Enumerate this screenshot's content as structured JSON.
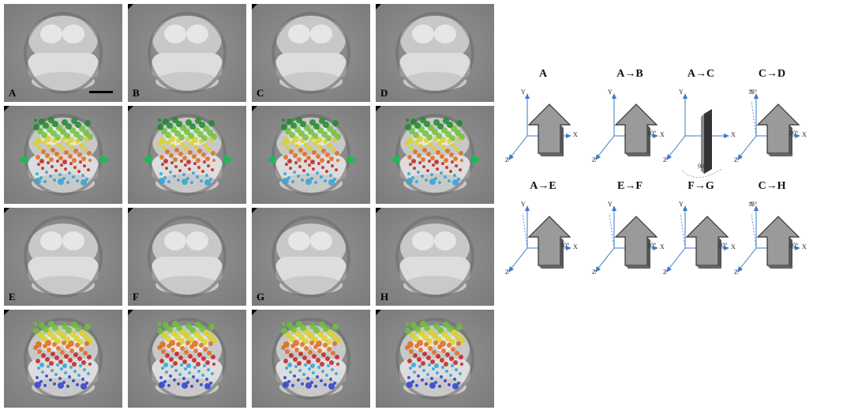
{
  "panels": {
    "row_labels": [
      "A",
      "B",
      "C",
      "D",
      "E",
      "F",
      "G",
      "H"
    ]
  },
  "diagrams": [
    {
      "title": "A",
      "angle": ""
    },
    {
      "title": "A→B",
      "angle": "10°"
    },
    {
      "title": "A→C",
      "angle": "90°"
    },
    {
      "title": "C→D",
      "angle": "20°"
    },
    {
      "title": "A→E",
      "angle": "10°"
    },
    {
      "title": "E→F",
      "angle": "10°"
    },
    {
      "title": "F→G",
      "angle": "10°"
    },
    {
      "title": "C→H",
      "angle": "20°"
    }
  ],
  "axis_labels": {
    "x": "X",
    "y": "Y",
    "z": "Z"
  },
  "secondary_angles": {
    "C→D": "15°",
    "C→H": "15°"
  },
  "colors": {
    "accent_green": "#1db954",
    "axis_blue": "#3b78c9",
    "arrow_gray": "#9a9a9a"
  }
}
